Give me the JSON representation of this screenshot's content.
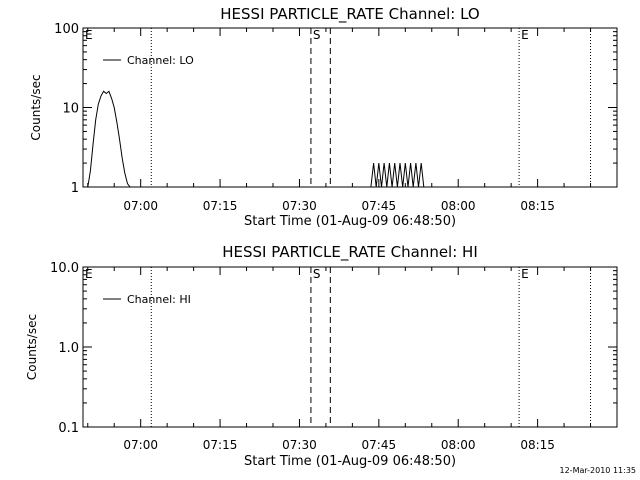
{
  "footer": {
    "timestamp": "12-Mar-2010 11:35"
  },
  "chart_data": [
    {
      "type": "line",
      "title": "HESSI PARTICLE_RATE Channel: LO",
      "xlabel": "Start Time (01-Aug-09 06:48:50)",
      "ylabel": "Counts/sec",
      "yscale": "log",
      "xlim": [
        "06:49:06",
        "08:30:00"
      ],
      "ylim": [
        1,
        100
      ],
      "xticks": [
        "07:00",
        "07:15",
        "07:30",
        "07:45",
        "08:00",
        "08:15"
      ],
      "yticks": [
        "1",
        "10",
        "100"
      ],
      "legend": "top-left",
      "series": [
        {
          "name": "Channel: LO",
          "x": [
            "06:50:00",
            "06:50:30",
            "06:51:00",
            "06:51:30",
            "06:52:00",
            "06:52:30",
            "06:53:00",
            "06:53:30",
            "06:54:00",
            "06:54:30",
            "06:55:00",
            "06:55:30",
            "06:56:00",
            "06:56:30",
            "06:57:00",
            "06:57:30",
            "06:58:00",
            "06:58:30",
            "06:59:00",
            "07:43:30",
            "07:44:00",
            "07:44:30",
            "07:45:00",
            "07:45:30",
            "07:46:00",
            "07:46:30",
            "07:47:00",
            "07:47:30",
            "07:48:00",
            "07:48:30",
            "07:49:00",
            "07:49:30",
            "07:50:00",
            "07:50:30",
            "07:51:00",
            "07:51:30",
            "07:52:00",
            "07:52:30",
            "07:53:00",
            "07:53:30",
            "07:54:00"
          ],
          "values": [
            1,
            1.6,
            3.5,
            7,
            11,
            14,
            16,
            15,
            16,
            13,
            10,
            6.5,
            4,
            2.3,
            1.5,
            1.1,
            1,
            1,
            1,
            1,
            2,
            1,
            2,
            1,
            2,
            1,
            2,
            1,
            2,
            1,
            2,
            1,
            2,
            1,
            2,
            1,
            2,
            1,
            2,
            1,
            1
          ]
        }
      ],
      "markers": [
        {
          "label": "E",
          "time": "06:49:06",
          "style": "dotted"
        },
        {
          "label": "",
          "time": "07:02:00",
          "style": "dotted"
        },
        {
          "label": "S",
          "time": "07:32:10",
          "style": "dashed"
        },
        {
          "label": "",
          "time": "07:35:50",
          "style": "dashed"
        },
        {
          "label": "E",
          "time": "08:11:30",
          "style": "dotted"
        },
        {
          "label": "",
          "time": "08:25:00",
          "style": "dotted"
        }
      ]
    },
    {
      "type": "line",
      "title": "HESSI PARTICLE_RATE Channel: HI",
      "xlabel": "Start Time (01-Aug-09 06:48:50)",
      "ylabel": "Counts/sec",
      "yscale": "log",
      "xlim": [
        "06:49:06",
        "08:30:00"
      ],
      "ylim": [
        0.1,
        10
      ],
      "xticks": [
        "07:00",
        "07:15",
        "07:30",
        "07:45",
        "08:00",
        "08:15"
      ],
      "yticks": [
        "0.1",
        "1.0",
        "10.0"
      ],
      "legend": "top-left",
      "series": [
        {
          "name": "Channel: HI",
          "x": [],
          "values": []
        }
      ],
      "markers": [
        {
          "label": "E",
          "time": "06:49:06",
          "style": "dotted"
        },
        {
          "label": "",
          "time": "07:02:00",
          "style": "dotted"
        },
        {
          "label": "S",
          "time": "07:32:10",
          "style": "dashed"
        },
        {
          "label": "",
          "time": "07:35:50",
          "style": "dashed"
        },
        {
          "label": "E",
          "time": "08:11:30",
          "style": "dotted"
        },
        {
          "label": "",
          "time": "08:25:00",
          "style": "dotted"
        }
      ]
    }
  ]
}
